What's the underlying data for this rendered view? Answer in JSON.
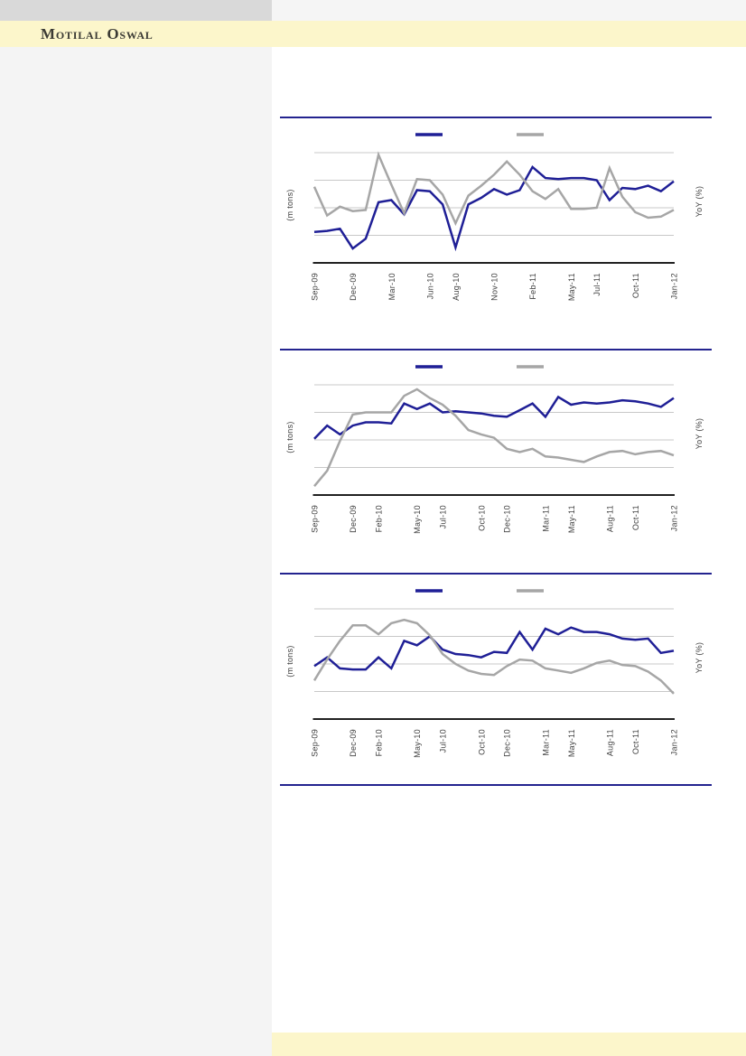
{
  "brand": {
    "name": "Motilal Oswal"
  },
  "colors": {
    "navy": "#1f1f96",
    "gray": "#a6a6a6",
    "divider_navy": "#23238f",
    "band_yellow": "#fcf6cb",
    "topbar_left_gray": "#d9d9d9",
    "topbar_right_gray": "#f5f5f5",
    "sidebar_gray": "#f4f4f4",
    "gridline_gray": "#c8c8c8",
    "axis_black": "#000000",
    "label_text": "#3f3f3f"
  },
  "chart_data": [
    {
      "type": "line",
      "title": "",
      "ylabel_left": "(m tons)",
      "ylabel_right": "YoY (%)",
      "grid": true,
      "gridline_count": 4,
      "y_axis_numeric_ticks_visible": false,
      "value_unit": "relative height, 0 = x-axis, 100 = top gridline (no numeric y ticks shown in source)",
      "x_monthly_range": "Sep-09 to Jan-12 (29 monthly points)",
      "legend": {
        "labels_visible": false,
        "entries": [
          {
            "key": "navy",
            "label": "",
            "color": "#1f1f96"
          },
          {
            "key": "gray",
            "label": "",
            "color": "#a6a6a6"
          }
        ]
      },
      "x_ticks": [
        {
          "label": "Sep-09",
          "i": 0
        },
        {
          "label": "Dec-09",
          "i": 3
        },
        {
          "label": "Mar-10",
          "i": 6
        },
        {
          "label": "Jun-10",
          "i": 9
        },
        {
          "label": "Aug-10",
          "i": 11
        },
        {
          "label": "Nov-10",
          "i": 14
        },
        {
          "label": "Feb-11",
          "i": 17
        },
        {
          "label": "May-11",
          "i": 20
        },
        {
          "label": "Jul-11",
          "i": 22
        },
        {
          "label": "Oct-11",
          "i": 25
        },
        {
          "label": "Jan-12",
          "i": 28
        }
      ],
      "series": [
        {
          "key": "navy",
          "color": "#1f1f96",
          "values": [
            28,
            29,
            31,
            13,
            22,
            55,
            57,
            44,
            66,
            65,
            53,
            14,
            53,
            59,
            67,
            62,
            66,
            87,
            77,
            76,
            77,
            77,
            75,
            57,
            68,
            67,
            70,
            65,
            74
          ]
        },
        {
          "key": "gray",
          "color": "#a6a6a6",
          "values": [
            69,
            43,
            51,
            47,
            48,
            98,
            71,
            45,
            76,
            75,
            62,
            36,
            61,
            70,
            80,
            92,
            80,
            65,
            58,
            67,
            49,
            49,
            50,
            86,
            60,
            46,
            41,
            42,
            48
          ]
        }
      ]
    },
    {
      "type": "line",
      "title": "",
      "ylabel_left": "(m tons)",
      "ylabel_right": "YoY (%)",
      "grid": true,
      "gridline_count": 4,
      "y_axis_numeric_ticks_visible": false,
      "value_unit": "relative height, 0 = x-axis, 100 = top gridline (no numeric y ticks shown in source)",
      "x_monthly_range": "Sep-09 to Jan-12 (29 monthly points)",
      "legend": {
        "labels_visible": false,
        "entries": [
          {
            "key": "navy",
            "label": "",
            "color": "#1f1f96"
          },
          {
            "key": "gray",
            "label": "",
            "color": "#a6a6a6"
          }
        ]
      },
      "x_ticks": [
        {
          "label": "Sep-09",
          "i": 0
        },
        {
          "label": "Dec-09",
          "i": 3
        },
        {
          "label": "Feb-10",
          "i": 5
        },
        {
          "label": "May-10",
          "i": 8
        },
        {
          "label": "Jul-10",
          "i": 10
        },
        {
          "label": "Oct-10",
          "i": 13
        },
        {
          "label": "Dec-10",
          "i": 15
        },
        {
          "label": "Mar-11",
          "i": 18
        },
        {
          "label": "May-11",
          "i": 20
        },
        {
          "label": "Aug-11",
          "i": 23
        },
        {
          "label": "Oct-11",
          "i": 25
        },
        {
          "label": "Jan-12",
          "i": 28
        }
      ],
      "series": [
        {
          "key": "navy",
          "color": "#1f1f96",
          "values": [
            51,
            63,
            55,
            63,
            66,
            66,
            65,
            83,
            78,
            83,
            75,
            76,
            75,
            74,
            72,
            71,
            77,
            83,
            71,
            89,
            82,
            84,
            83,
            84,
            86,
            85,
            83,
            80,
            88
          ]
        },
        {
          "key": "gray",
          "color": "#a6a6a6",
          "values": [
            8,
            22,
            49,
            73,
            75,
            75,
            75,
            90,
            96,
            88,
            82,
            72,
            59,
            55,
            52,
            42,
            39,
            42,
            35,
            34,
            32,
            30,
            35,
            39,
            40,
            37,
            39,
            40,
            36
          ]
        }
      ]
    },
    {
      "type": "line",
      "title": "",
      "ylabel_left": "(m tons)",
      "ylabel_right": "YoY (%)",
      "grid": true,
      "gridline_count": 4,
      "y_axis_numeric_ticks_visible": false,
      "value_unit": "relative height, 0 = x-axis, 100 = top gridline (no numeric y ticks shown in source)",
      "x_monthly_range": "Sep-09 to Jan-12 (29 monthly points)",
      "legend": {
        "labels_visible": false,
        "entries": [
          {
            "key": "navy",
            "label": "",
            "color": "#1f1f96"
          },
          {
            "key": "gray",
            "label": "",
            "color": "#a6a6a6"
          }
        ]
      },
      "x_ticks": [
        {
          "label": "Sep-09",
          "i": 0
        },
        {
          "label": "Dec-09",
          "i": 3
        },
        {
          "label": "Feb-10",
          "i": 5
        },
        {
          "label": "May-10",
          "i": 8
        },
        {
          "label": "Jul-10",
          "i": 10
        },
        {
          "label": "Oct-10",
          "i": 13
        },
        {
          "label": "Dec-10",
          "i": 15
        },
        {
          "label": "Mar-11",
          "i": 18
        },
        {
          "label": "May-11",
          "i": 20
        },
        {
          "label": "Aug-11",
          "i": 23
        },
        {
          "label": "Oct-11",
          "i": 25
        },
        {
          "label": "Jan-12",
          "i": 28
        }
      ],
      "series": [
        {
          "key": "navy",
          "color": "#1f1f96",
          "values": [
            48,
            56,
            46,
            45,
            45,
            56,
            46,
            71,
            67,
            75,
            63,
            59,
            58,
            56,
            61,
            60,
            79,
            63,
            82,
            77,
            83,
            79,
            79,
            77,
            73,
            72,
            73,
            60,
            62
          ]
        },
        {
          "key": "gray",
          "color": "#a6a6a6",
          "values": [
            35,
            54,
            71,
            85,
            85,
            77,
            87,
            90,
            87,
            76,
            59,
            50,
            44,
            41,
            40,
            48,
            54,
            53,
            46,
            44,
            42,
            46,
            51,
            53,
            49,
            48,
            43,
            35,
            23
          ]
        }
      ]
    }
  ]
}
